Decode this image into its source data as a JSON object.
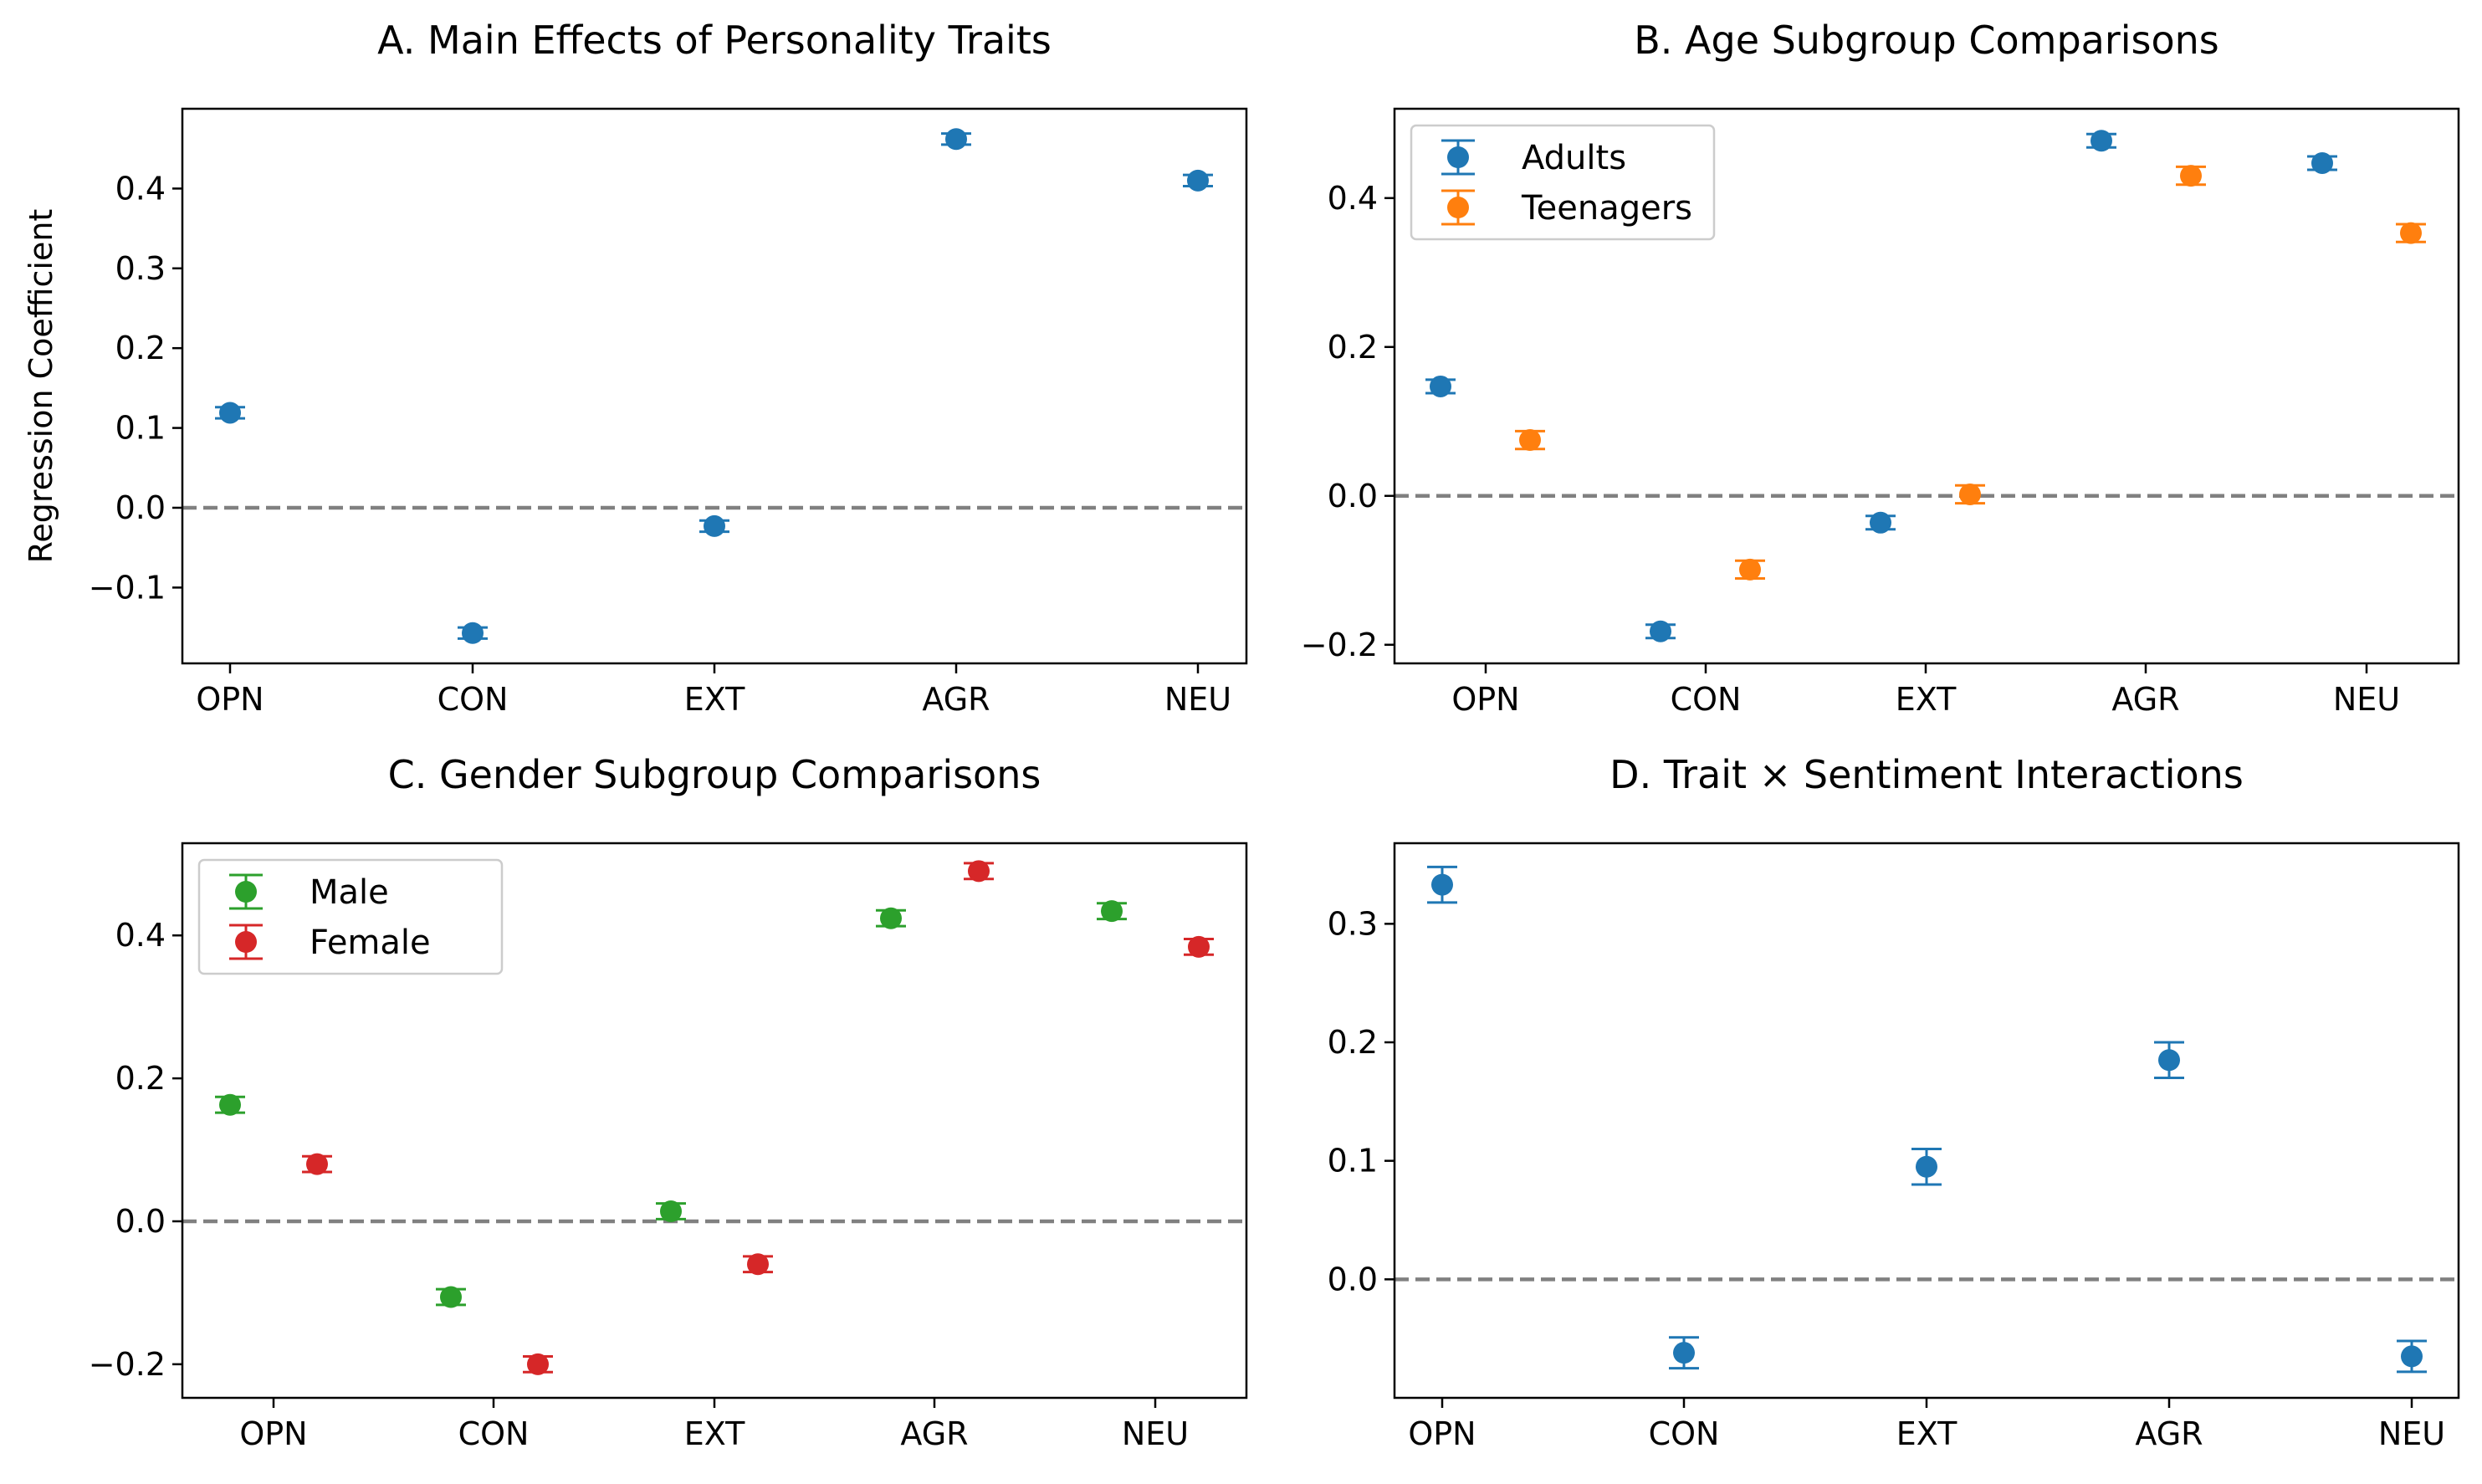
{
  "chart_data": [
    {
      "type": "scatter",
      "title": "A. Main Effects of Personality Traits",
      "xlabel": "",
      "ylabel": "Regression Coefficient",
      "categories": [
        "OPN",
        "CON",
        "EXT",
        "AGR",
        "NEU"
      ],
      "ylim": [
        -0.195,
        0.5
      ],
      "yticks": [
        -0.1,
        0.0,
        0.1,
        0.2,
        0.3,
        0.4
      ],
      "ytick_labels": [
        "−0.1",
        "0.0",
        "0.1",
        "0.2",
        "0.3",
        "0.4"
      ],
      "reference_line": 0,
      "legend": "none",
      "grid": false,
      "series": [
        {
          "values": [
            0.119,
            -0.157,
            -0.023,
            0.462,
            0.41
          ],
          "errors": [
            0.007,
            0.007,
            0.007,
            0.007,
            0.007
          ],
          "color": "#1f77b4"
        }
      ]
    },
    {
      "type": "scatter",
      "title": "B. Age Subgroup Comparisons",
      "xlabel": "",
      "ylabel": "",
      "categories": [
        "OPN",
        "CON",
        "EXT",
        "AGR",
        "NEU"
      ],
      "ylim": [
        -0.225,
        0.52
      ],
      "yticks": [
        -0.2,
        0.0,
        0.2,
        0.4
      ],
      "ytick_labels": [
        "−0.2",
        "0.0",
        "0.2",
        "0.4"
      ],
      "reference_line": 0,
      "legend": "top-left",
      "grid": false,
      "series": [
        {
          "name": "Adults",
          "values": [
            0.147,
            -0.182,
            -0.036,
            0.477,
            0.447
          ],
          "errors": [
            0.009,
            0.009,
            0.009,
            0.009,
            0.009
          ],
          "color": "#1f77b4"
        },
        {
          "name": "Teenagers",
          "values": [
            0.075,
            -0.099,
            0.002,
            0.43,
            0.353
          ],
          "errors": [
            0.012,
            0.012,
            0.012,
            0.012,
            0.012
          ],
          "color": "#ff7f0e"
        }
      ]
    },
    {
      "type": "scatter",
      "title": "C. Gender Subgroup Comparisons",
      "xlabel": "",
      "ylabel": "",
      "categories": [
        "OPN",
        "CON",
        "EXT",
        "AGR",
        "NEU"
      ],
      "ylim": [
        -0.247,
        0.529
      ],
      "yticks": [
        -0.2,
        0.0,
        0.2,
        0.4
      ],
      "ytick_labels": [
        "−0.2",
        "0.0",
        "0.2",
        "0.4"
      ],
      "reference_line": 0,
      "legend": "top-left",
      "grid": false,
      "series": [
        {
          "name": "Male",
          "values": [
            0.163,
            -0.106,
            0.014,
            0.424,
            0.434
          ],
          "errors": [
            0.011,
            0.011,
            0.011,
            0.011,
            0.011
          ],
          "color": "#2ca02c"
        },
        {
          "name": "Female",
          "values": [
            0.08,
            -0.2,
            -0.06,
            0.49,
            0.384
          ],
          "errors": [
            0.011,
            0.011,
            0.011,
            0.011,
            0.011
          ],
          "color": "#d62728"
        }
      ]
    },
    {
      "type": "scatter",
      "title": "D. Trait × Sentiment Interactions",
      "xlabel": "",
      "ylabel": "",
      "categories": [
        "OPN",
        "CON",
        "EXT",
        "AGR",
        "NEU"
      ],
      "ylim": [
        -0.1,
        0.368
      ],
      "yticks": [
        0.0,
        0.1,
        0.2,
        0.3
      ],
      "ytick_labels": [
        "0.0",
        "0.1",
        "0.2",
        "0.3"
      ],
      "reference_line": 0,
      "legend": "none",
      "grid": false,
      "series": [
        {
          "values": [
            0.333,
            -0.062,
            0.095,
            0.185,
            -0.065
          ],
          "errors": [
            0.015,
            0.013,
            0.015,
            0.015,
            0.013
          ],
          "color": "#1f77b4"
        }
      ]
    }
  ]
}
